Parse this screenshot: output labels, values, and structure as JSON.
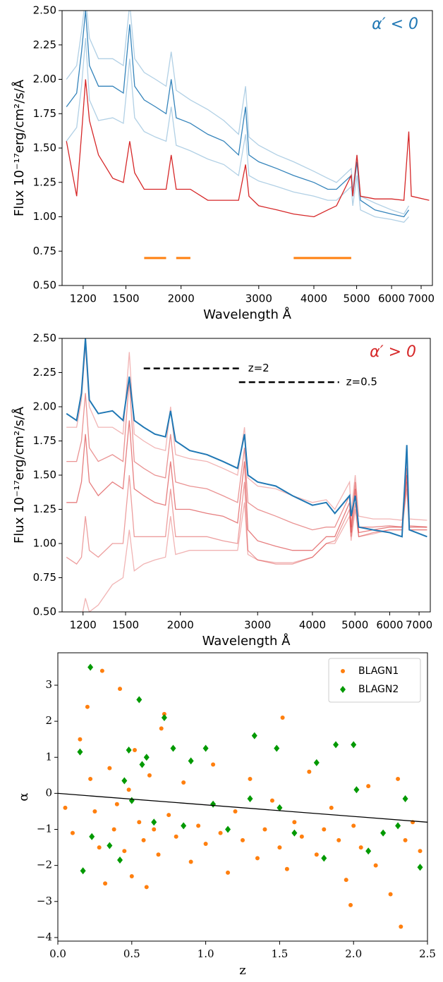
{
  "chart_data": [
    {
      "type": "line",
      "xscale": "log",
      "xlabel": "Wavelength Å",
      "ylabel": "Flux  10⁻¹⁷erg/cm²/s/Å",
      "annotations": [
        {
          "text": "α′ < 0",
          "color": "#1f77b4"
        }
      ],
      "xlim": [
        1075,
        7425
      ],
      "xticks": [
        1200,
        1500,
        2000,
        3000,
        4000,
        5000,
        6000,
        7000
      ],
      "ylim": [
        0.5,
        2.5
      ],
      "yticks": [
        {
          "value": 0.5,
          "label": "0.50"
        },
        0.75,
        {
          "value": 1.0,
          "label": "1.00"
        },
        1.25,
        {
          "value": 1.5,
          "label": "1.50"
        },
        1.75,
        {
          "value": 2.0,
          "label": "2.00"
        },
        2.25,
        {
          "value": 2.5,
          "label": "2.50"
        }
      ],
      "x": [
        1100,
        1160,
        1190,
        1215,
        1240,
        1300,
        1400,
        1480,
        1530,
        1570,
        1650,
        1750,
        1850,
        1900,
        1950,
        2100,
        2300,
        2500,
        2700,
        2800,
        2850,
        3000,
        3300,
        3600,
        4000,
        4300,
        4500,
        4861,
        4900,
        5007,
        5100,
        5500,
        6000,
        6400,
        6563,
        6650,
        7300
      ],
      "series": [
        {
          "color": "#1f77b4",
          "alpha": 0.35,
          "values": [
            2.0,
            2.1,
            2.35,
            2.6,
            2.3,
            2.15,
            2.15,
            2.1,
            2.55,
            2.15,
            2.05,
            2.0,
            1.95,
            2.2,
            1.92,
            1.85,
            1.78,
            1.7,
            1.6,
            1.95,
            1.58,
            1.52,
            1.45,
            1.4,
            1.33,
            1.28,
            1.25,
            1.35,
            1.2,
            1.45,
            1.15,
            1.1,
            1.05,
            1.02,
            1.08,
            null,
            null
          ]
        },
        {
          "color": "#1f77b4",
          "alpha": 0.9,
          "values": [
            1.8,
            1.9,
            2.2,
            2.5,
            2.1,
            1.95,
            1.95,
            1.9,
            2.4,
            1.95,
            1.85,
            1.8,
            1.75,
            2.0,
            1.72,
            1.68,
            1.6,
            1.55,
            1.45,
            1.8,
            1.45,
            1.4,
            1.35,
            1.3,
            1.25,
            1.2,
            1.2,
            1.3,
            1.15,
            1.4,
            1.12,
            1.05,
            1.02,
            1.0,
            1.05,
            null,
            null
          ]
        },
        {
          "color": "#1f77b4",
          "alpha": 0.35,
          "values": [
            1.55,
            1.65,
            1.95,
            2.3,
            1.85,
            1.7,
            1.72,
            1.68,
            2.15,
            1.72,
            1.62,
            1.58,
            1.55,
            1.8,
            1.52,
            1.48,
            1.42,
            1.38,
            1.3,
            1.6,
            1.3,
            1.26,
            1.22,
            1.18,
            1.15,
            1.12,
            1.12,
            1.22,
            1.08,
            1.3,
            1.05,
            1.0,
            0.98,
            0.96,
            1.0,
            null,
            null
          ]
        },
        {
          "color": "#d62728",
          "alpha": 1,
          "values": [
            1.55,
            1.15,
            1.6,
            2.0,
            1.7,
            1.45,
            1.28,
            1.25,
            1.55,
            1.32,
            1.2,
            1.2,
            1.2,
            1.45,
            1.2,
            1.2,
            1.12,
            1.12,
            1.12,
            1.38,
            1.15,
            1.08,
            1.05,
            1.02,
            1.0,
            1.05,
            1.08,
            1.3,
            1.15,
            1.45,
            1.15,
            1.13,
            1.13,
            1.12,
            1.62,
            1.15,
            1.12
          ]
        },
        {
          "color": "#ff7f0e",
          "alpha": 1,
          "width": 3,
          "values": [
            null,
            null,
            null,
            null,
            null,
            null,
            null,
            null,
            null,
            null,
            0.7,
            0.7,
            0.7,
            null,
            0.7,
            0.7,
            null,
            null,
            null,
            null,
            null,
            null,
            null,
            0.7,
            0.7,
            0.7,
            0.7,
            0.7,
            null,
            null,
            null,
            null,
            null,
            null,
            null,
            null,
            null
          ]
        }
      ]
    },
    {
      "type": "line",
      "xscale": "log",
      "xlabel": "Wavelength Å",
      "ylabel": "Flux  10⁻¹⁷erg/cm²/s/Å",
      "annotations": [
        {
          "text": "α′ > 0",
          "color": "#d62728"
        },
        {
          "text": "z=2",
          "x": [
            1650,
            2750
          ],
          "y": 2.28
        },
        {
          "text": "z=0.5",
          "x": [
            2720,
            4600
          ],
          "y": 2.18
        }
      ],
      "xlim": [
        1075,
        7425
      ],
      "xticks": [
        1200,
        1500,
        2000,
        3000,
        4000,
        5000,
        6000,
        7000
      ],
      "ylim": [
        0.5,
        2.5
      ],
      "yticks": [
        {
          "value": 0.5,
          "label": "0.50"
        },
        0.75,
        {
          "value": 1.0,
          "label": "1.00"
        },
        1.25,
        {
          "value": 1.5,
          "label": "1.50"
        },
        1.75,
        {
          "value": 2.0,
          "label": "2.00"
        },
        2.25,
        {
          "value": 2.5,
          "label": "2.50"
        }
      ],
      "x": [
        1100,
        1160,
        1190,
        1215,
        1240,
        1300,
        1400,
        1480,
        1530,
        1570,
        1650,
        1750,
        1850,
        1900,
        1950,
        2100,
        2300,
        2500,
        2700,
        2800,
        2850,
        3000,
        3300,
        3600,
        4000,
        4300,
        4500,
        4861,
        4900,
        5007,
        5100,
        5500,
        6000,
        6400,
        6563,
        6650,
        7300
      ],
      "series": [
        {
          "color": "#d62728",
          "alpha": 0.35,
          "values": [
            1.85,
            1.85,
            2.05,
            2.45,
            2.0,
            1.85,
            1.85,
            1.8,
            2.4,
            1.8,
            1.75,
            1.7,
            1.68,
            2.0,
            1.65,
            1.62,
            1.6,
            1.55,
            1.5,
            1.85,
            1.48,
            1.42,
            1.4,
            1.35,
            1.3,
            1.32,
            1.25,
            1.45,
            1.22,
            1.5,
            1.2,
            1.18,
            1.18,
            1.17,
            1.6,
            1.18,
            1.17
          ]
        },
        {
          "color": "#d62728",
          "alpha": 0.5,
          "values": [
            1.6,
            1.6,
            1.75,
            2.1,
            1.7,
            1.6,
            1.65,
            1.6,
            2.2,
            1.6,
            1.55,
            1.5,
            1.48,
            1.8,
            1.45,
            1.42,
            1.4,
            1.35,
            1.3,
            1.7,
            1.3,
            1.25,
            1.2,
            1.15,
            1.1,
            1.12,
            1.12,
            1.35,
            1.12,
            1.45,
            1.12,
            1.12,
            1.13,
            1.12,
            1.55,
            1.13,
            1.12
          ]
        },
        {
          "color": "#d62728",
          "alpha": 0.6,
          "values": [
            1.3,
            1.3,
            1.45,
            1.8,
            1.45,
            1.35,
            1.45,
            1.4,
            1.9,
            1.4,
            1.35,
            1.3,
            1.28,
            1.6,
            1.25,
            1.25,
            1.22,
            1.2,
            1.15,
            1.6,
            1.1,
            1.02,
            0.98,
            0.95,
            0.95,
            1.05,
            1.05,
            1.3,
            1.08,
            1.4,
            1.08,
            1.1,
            1.12,
            1.12,
            1.5,
            1.12,
            1.12
          ]
        },
        {
          "color": "#d62728",
          "alpha": 0.45,
          "values": [
            0.9,
            0.85,
            0.9,
            1.2,
            0.95,
            0.9,
            1.0,
            1.0,
            1.5,
            1.05,
            1.05,
            1.05,
            1.05,
            1.4,
            1.05,
            1.05,
            1.05,
            1.02,
            1.0,
            1.45,
            0.95,
            0.88,
            0.85,
            0.85,
            0.9,
            1.0,
            1.02,
            1.25,
            1.05,
            1.3,
            1.05,
            1.08,
            1.1,
            1.1,
            1.45,
            1.1,
            1.1
          ]
        },
        {
          "color": "#d62728",
          "alpha": 0.35,
          "values": [
            0.4,
            0.4,
            0.45,
            0.6,
            0.5,
            0.55,
            0.7,
            0.75,
            1.1,
            0.8,
            0.85,
            0.88,
            0.9,
            1.2,
            0.92,
            0.95,
            0.95,
            0.95,
            0.95,
            1.3,
            0.92,
            0.88,
            0.86,
            0.86,
            0.9,
            1.0,
            1.0,
            1.2,
            1.02,
            1.25,
            1.05,
            1.07,
            1.1,
            1.1,
            1.4,
            1.1,
            1.1
          ]
        },
        {
          "color": "#1f77b4",
          "alpha": 1,
          "width": 2,
          "values": [
            1.95,
            1.9,
            2.1,
            2.5,
            2.05,
            1.95,
            1.97,
            1.9,
            2.22,
            1.9,
            1.85,
            1.8,
            1.78,
            1.97,
            1.75,
            1.68,
            1.65,
            1.6,
            1.55,
            1.8,
            1.5,
            1.45,
            1.42,
            1.35,
            1.28,
            1.3,
            1.22,
            1.35,
            1.2,
            1.35,
            1.12,
            1.1,
            1.08,
            1.05,
            1.72,
            1.1,
            1.05
          ]
        }
      ]
    },
    {
      "type": "scatter",
      "xlabel": "z",
      "ylabel": "α",
      "legend": "upper right",
      "xlim": [
        0,
        2.5
      ],
      "xticks": [
        {
          "value": 0,
          "label": "0.0"
        },
        0.5,
        {
          "value": 1,
          "label": "1.0"
        },
        1.5,
        {
          "value": 2,
          "label": "2.0"
        },
        2.5
      ],
      "ylim": [
        -4.1,
        3.9
      ],
      "yticks": [
        {
          "value": -4,
          "label": "−4"
        },
        {
          "value": -3,
          "label": "−3"
        },
        {
          "value": -2,
          "label": "−2"
        },
        {
          "value": -1,
          "label": "−1"
        },
        0,
        1,
        2,
        3
      ],
      "series": [
        {
          "name": "BLAGN1",
          "color": "#ff7f0e",
          "marker": "circle",
          "x": [
            0.05,
            0.1,
            0.15,
            0.2,
            0.22,
            0.25,
            0.28,
            0.3,
            0.32,
            0.35,
            0.38,
            0.4,
            0.42,
            0.45,
            0.48,
            0.5,
            0.52,
            0.55,
            0.58,
            0.6,
            0.62,
            0.65,
            0.68,
            0.7,
            0.72,
            0.75,
            0.8,
            0.85,
            0.9,
            0.95,
            1.0,
            1.05,
            1.1,
            1.15,
            1.2,
            1.25,
            1.3,
            1.35,
            1.4,
            1.45,
            1.5,
            1.52,
            1.55,
            1.6,
            1.65,
            1.7,
            1.75,
            1.8,
            1.85,
            1.9,
            1.95,
            1.98,
            2.0,
            2.05,
            2.1,
            2.15,
            2.2,
            2.25,
            2.3,
            2.32,
            2.35,
            2.4,
            2.45
          ],
          "values": [
            -0.4,
            -1.1,
            1.5,
            2.4,
            0.4,
            -0.5,
            -1.5,
            3.4,
            -2.5,
            0.7,
            -1.0,
            -0.3,
            2.9,
            -1.6,
            0.1,
            -2.3,
            1.2,
            -0.8,
            -1.3,
            -2.6,
            0.5,
            -1.0,
            -1.7,
            1.8,
            2.2,
            -0.6,
            -1.2,
            0.3,
            -1.9,
            -0.9,
            -1.4,
            0.8,
            -1.1,
            -2.2,
            -0.5,
            -1.3,
            0.4,
            -1.8,
            -1.0,
            -0.2,
            -1.5,
            2.1,
            -2.1,
            -0.8,
            -1.2,
            0.6,
            -1.7,
            -1.0,
            -0.4,
            -1.3,
            -2.4,
            -3.1,
            -0.9,
            -1.5,
            0.2,
            -2.0,
            -1.1,
            -2.8,
            0.4,
            -3.7,
            -1.3,
            -0.8,
            -1.6
          ]
        },
        {
          "name": "BLAGN2",
          "color": "#009900",
          "marker": "diamond",
          "x": [
            0.15,
            0.17,
            0.22,
            0.23,
            0.35,
            0.42,
            0.45,
            0.48,
            0.5,
            0.55,
            0.57,
            0.6,
            0.65,
            0.72,
            0.78,
            0.85,
            0.9,
            1.0,
            1.05,
            1.15,
            1.3,
            1.33,
            1.48,
            1.5,
            1.6,
            1.75,
            1.8,
            1.88,
            2.0,
            2.02,
            2.1,
            2.2,
            2.3,
            2.35,
            2.45
          ],
          "values": [
            1.15,
            -2.15,
            3.5,
            -1.2,
            -1.45,
            -1.85,
            0.35,
            1.2,
            -0.2,
            2.6,
            0.8,
            1.0,
            -0.8,
            2.1,
            1.25,
            -0.9,
            0.9,
            1.25,
            -0.3,
            -1.0,
            -0.15,
            1.6,
            1.25,
            -0.4,
            -1.1,
            0.85,
            -1.8,
            1.35,
            1.35,
            0.1,
            -1.6,
            -1.1,
            -0.9,
            -0.15,
            -2.05
          ]
        },
        {
          "type": "line",
          "color": "#000000",
          "x": [
            0,
            2.5
          ],
          "values": [
            0,
            -0.8
          ]
        }
      ]
    }
  ]
}
